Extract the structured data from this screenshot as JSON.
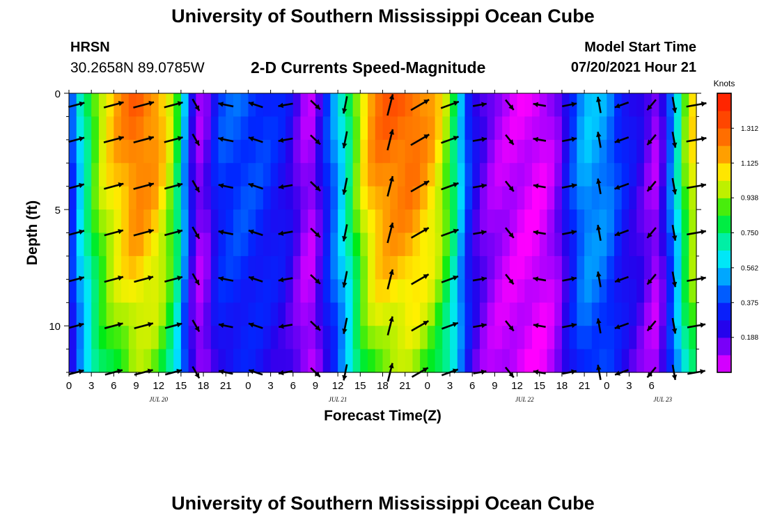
{
  "header": {
    "title": "University of Southern Mississippi Ocean Cube",
    "station_code": "HRSN",
    "station_coords": "30.2658N  89.0785W",
    "subtitle": "2-D Currents Speed-Magnitude",
    "model_start_label": "Model Start Time",
    "model_start_value": "07/20/2021 Hour 21"
  },
  "footer": {
    "title": "University of Southern Mississippi Ocean Cube"
  },
  "chart_data": {
    "type": "heatmap",
    "title": "2-D Currents Speed-Magnitude",
    "xlabel": "Forecast Time(Z)",
    "ylabel": "Depth (ft)",
    "x_range_hours": [
      0,
      84
    ],
    "x_start_hour_of_day": 0,
    "x_tick_labels": [
      "0",
      "3",
      "6",
      "9",
      "12",
      "15",
      "18",
      "21",
      "0",
      "3",
      "6",
      "9",
      "12",
      "15",
      "18",
      "21",
      "0",
      "3",
      "6",
      "9",
      "12",
      "15",
      "18",
      "21",
      "0",
      "3",
      "6"
    ],
    "date_labels": [
      {
        "label": "JUL 20",
        "hour": 12
      },
      {
        "label": "JUL 21",
        "hour": 36
      },
      {
        "label": "JUL 22",
        "hour": 61
      },
      {
        "label": "JUL 23",
        "hour": 79.5
      }
    ],
    "y_range_ft": [
      0,
      12
    ],
    "y_tick_labels": [
      "0",
      "5",
      "10"
    ],
    "y_tick_values": [
      0,
      5,
      10
    ],
    "colorbar": {
      "label": "Knots",
      "range": [
        0,
        1.5
      ],
      "tick_labels": [
        "1.312",
        "1.125",
        "0.938",
        "0.750",
        "0.562",
        "0.375",
        "0.188"
      ],
      "tick_values": [
        1.312,
        1.125,
        0.938,
        0.75,
        0.562,
        0.375,
        0.188
      ]
    },
    "speed_keys_hours": [
      0,
      1,
      2,
      3,
      4,
      6,
      9,
      12,
      14,
      15,
      16,
      17,
      18,
      19,
      20,
      21,
      23,
      26,
      29,
      31,
      32,
      33,
      34,
      36,
      38,
      39,
      40,
      41,
      43,
      46,
      49,
      51,
      52,
      53,
      54,
      55,
      57,
      60,
      63,
      65,
      66,
      67,
      68,
      69,
      72,
      74,
      75,
      76,
      77,
      78,
      79,
      80,
      81,
      82,
      83,
      84
    ],
    "speed_keys_knots": [
      0.25,
      0.55,
      0.7,
      0.85,
      1.0,
      1.15,
      1.3,
      1.2,
      0.95,
      0.7,
      0.35,
      0.15,
      0.1,
      0.25,
      0.38,
      0.4,
      0.42,
      0.38,
      0.3,
      0.15,
      0.08,
      0.12,
      0.3,
      0.55,
      0.85,
      1.05,
      1.15,
      1.25,
      1.3,
      1.3,
      1.15,
      0.9,
      0.7,
      0.45,
      0.3,
      0.2,
      0.1,
      0.05,
      0.03,
      0.1,
      0.2,
      0.35,
      0.45,
      0.55,
      0.5,
      0.35,
      0.3,
      0.25,
      0.2,
      0.12,
      0.1,
      0.35,
      0.55,
      0.8,
      1.05,
      1.1
    ],
    "vectors_ft": [
      0.5,
      2,
      4,
      6,
      8,
      10,
      12
    ],
    "vector_hours": [
      1,
      6,
      10,
      14,
      17,
      21,
      25,
      29,
      33,
      37,
      43,
      47,
      51,
      55,
      59,
      63,
      67,
      71,
      74,
      78,
      81,
      84
    ],
    "direction_keys_hours": [
      0,
      16,
      17,
      20,
      26,
      29,
      30,
      31,
      34,
      45,
      47,
      48,
      51,
      55,
      56,
      58,
      62,
      64,
      66,
      70,
      72,
      74,
      76,
      78,
      80,
      82,
      84
    ],
    "direction_keys_deg": [
      15,
      15,
      -60,
      170,
      160,
      190,
      225,
      250,
      350,
      15,
      30,
      35,
      20,
      10,
      315,
      305,
      320,
      20,
      10,
      15,
      185,
      200,
      200,
      230,
      280,
      280,
      10
    ]
  }
}
